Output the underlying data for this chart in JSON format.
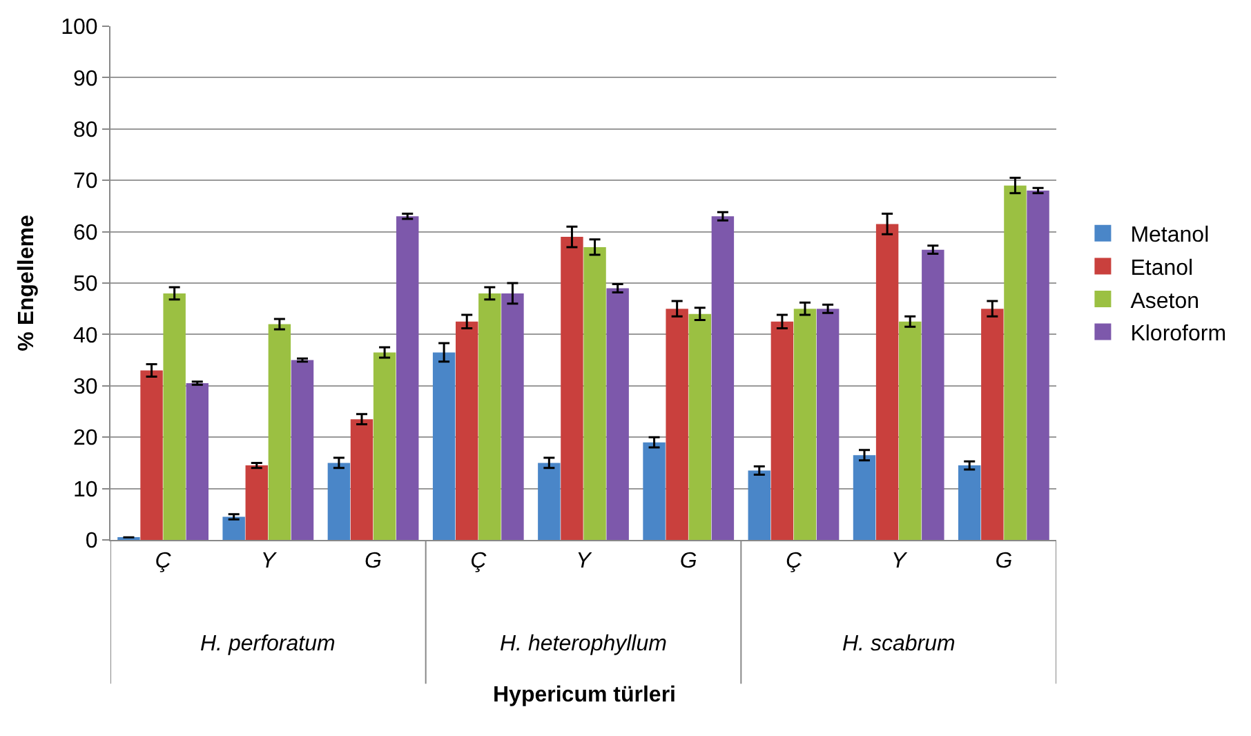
{
  "chart_data": {
    "type": "bar",
    "categories": [
      "Ç",
      "Y",
      "G",
      "Ç",
      "Y",
      "G",
      "Ç",
      "Y",
      "G"
    ],
    "series": [
      {
        "name": "Metanol",
        "color": "#4a86c8",
        "values": [
          0.5,
          4.5,
          15,
          36.5,
          15,
          19,
          13.5,
          16.5,
          14.5
        ],
        "errors": [
          null,
          0.5,
          1,
          1.8,
          1,
          1,
          0.8,
          1,
          0.8
        ]
      },
      {
        "name": "Etanol",
        "color": "#c9403d",
        "values": [
          33,
          14.5,
          23.5,
          42.5,
          59,
          45,
          42.5,
          61.5,
          45
        ],
        "errors": [
          1.2,
          0.5,
          1,
          1.3,
          2,
          1.5,
          1.3,
          2,
          1.5
        ]
      },
      {
        "name": "Aseton",
        "color": "#9bc042",
        "values": [
          48,
          42,
          36.5,
          48,
          57,
          44,
          45,
          42.5,
          69
        ],
        "errors": [
          1.2,
          1,
          1,
          1.2,
          1.5,
          1.2,
          1.2,
          1,
          1.5
        ]
      },
      {
        "name": "Kloroform",
        "color": "#7d58ab",
        "values": [
          30.5,
          35,
          63,
          48,
          49,
          63,
          45,
          56.5,
          68
        ],
        "errors": [
          0.3,
          0.3,
          0.5,
          2,
          0.8,
          0.8,
          0.8,
          0.8,
          0.5
        ]
      }
    ],
    "ylim": [
      0,
      100
    ],
    "yticks": [
      0,
      10,
      20,
      30,
      40,
      50,
      60,
      70,
      80,
      90,
      100
    ],
    "ylabel": "% Engelleme",
    "xlabel": "Hypericum türleri",
    "annotations": [
      "H. perforatum",
      "H. heterophyllum",
      "H. scabrum"
    ],
    "grid": "y",
    "legend": "right"
  }
}
